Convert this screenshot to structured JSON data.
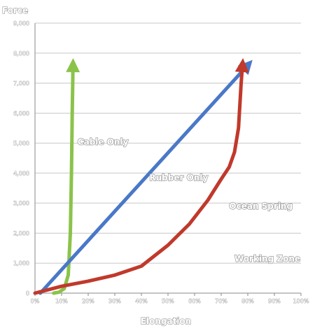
{
  "chart_data": {
    "type": "line",
    "title": "",
    "ylabel": "Force",
    "xlabel": "Elongation",
    "y_ticks": [
      "0",
      "1,000",
      "2,000",
      "3,000",
      "4,000",
      "5,000",
      "6,000",
      "7,000",
      "8,000",
      "9,000"
    ],
    "x_ticks": [
      "0%",
      "10%",
      "20%",
      "30%",
      "40%",
      "50%",
      "60%",
      "70%",
      "80%",
      "90%",
      "100%"
    ],
    "ylim": [
      0,
      9000
    ],
    "xlim": [
      0,
      100
    ],
    "grid": true,
    "series": [
      {
        "name": "Cable Only",
        "color": "#8bc34a",
        "values": [
          [
            7,
            0
          ],
          [
            9,
            30
          ],
          [
            11,
            150
          ],
          [
            12.5,
            600
          ],
          [
            13.3,
            2000
          ],
          [
            13.7,
            4000
          ],
          [
            14,
            6000
          ],
          [
            14.3,
            7600
          ]
        ]
      },
      {
        "name": "Rubber Only",
        "color": "#4a78c8",
        "values": [
          [
            2,
            0
          ],
          [
            80,
            7600
          ]
        ]
      },
      {
        "name": "Ocean Spring",
        "color": "#c0392b",
        "values": [
          [
            0,
            0
          ],
          [
            10,
            230
          ],
          [
            20,
            400
          ],
          [
            30,
            600
          ],
          [
            40,
            900
          ],
          [
            50,
            1600
          ],
          [
            58,
            2300
          ],
          [
            65,
            3100
          ],
          [
            70,
            3800
          ],
          [
            73,
            4200
          ],
          [
            75,
            4700
          ],
          [
            76.5,
            5500
          ],
          [
            77.5,
            7000
          ],
          [
            78,
            7600
          ]
        ]
      }
    ],
    "annotations": [
      {
        "text": "Cable Only",
        "x": 16,
        "y": 4950
      },
      {
        "text": "Rubber Only",
        "x": 43,
        "y": 3750
      },
      {
        "text": "Ocean Spring",
        "x": 73,
        "y": 2800
      },
      {
        "text": "Working Zone",
        "x": 75,
        "y": 1050
      }
    ]
  }
}
